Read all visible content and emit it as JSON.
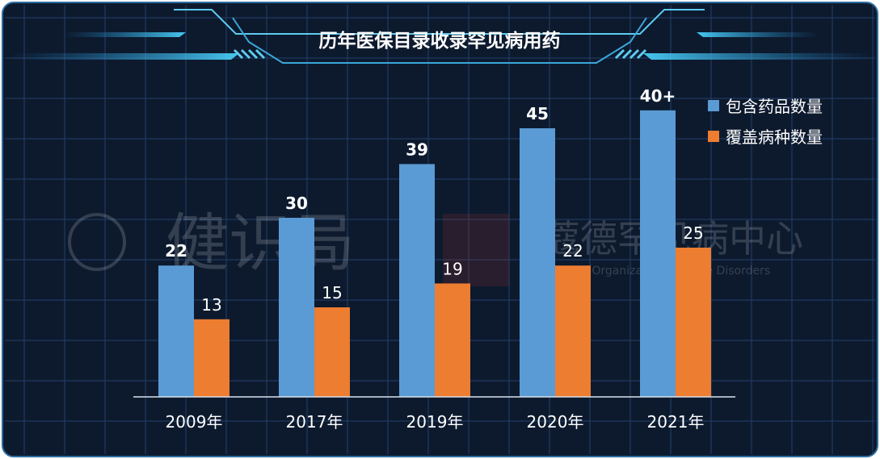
{
  "header": {
    "title": "历年医保目录收录罕见病用药"
  },
  "watermark": {
    "left_logo": "健识局",
    "right_logo_cn": "蔻德罕见病中心",
    "right_logo_en": "Chinese Organization for Rare Disorders"
  },
  "colors": {
    "background": "#0d1a2e",
    "grid": "#24406a",
    "frame": "#5ecbf0",
    "series_blue": "#5b9bd5",
    "series_orange": "#ed7d31",
    "text": "#ffffff"
  },
  "chart_data": {
    "type": "bar",
    "title": "历年医保目录收录罕见病用药",
    "categories": [
      "2009年",
      "2017年",
      "2019年",
      "2020年",
      "2021年"
    ],
    "series": [
      {
        "name": "包含药品数量",
        "values": [
          22,
          30,
          39,
          45,
          48
        ],
        "labels": [
          "22",
          "30",
          "39",
          "45",
          "40+"
        ]
      },
      {
        "name": "覆盖病种数量",
        "values": [
          13,
          15,
          19,
          22,
          25
        ],
        "labels": [
          "13",
          "15",
          "19",
          "22",
          "25"
        ]
      }
    ],
    "ylim": [
      0,
      50
    ],
    "grid": true,
    "legend_position": "top-right"
  }
}
